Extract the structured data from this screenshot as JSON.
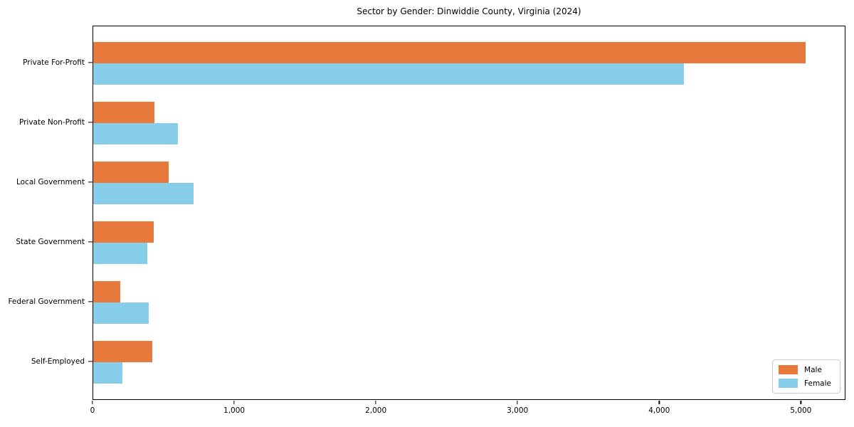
{
  "title": "Sector by Gender: Dinwiddie County, Virginia (2024)",
  "chart_data": {
    "type": "bar",
    "orientation": "horizontal",
    "title": "Sector by Gender: Dinwiddie County, Virginia (2024)",
    "categories": [
      "Private For-Profit",
      "Private Non-Profit",
      "Local Government",
      "State Government",
      "Federal Government",
      "Self-Employed"
    ],
    "series": [
      {
        "name": "Male",
        "color": "#E8793D",
        "values": [
          5030,
          430,
          535,
          425,
          190,
          415
        ]
      },
      {
        "name": "Female",
        "color": "#87CEEB",
        "values": [
          4170,
          600,
          710,
          380,
          390,
          205
        ]
      }
    ],
    "xlabel": "",
    "ylabel": "",
    "xlim": [
      0,
      5300
    ],
    "xticks": [
      0,
      1000,
      2000,
      3000,
      4000,
      5000
    ],
    "xtick_labels": [
      "0",
      "1,000",
      "2,000",
      "3,000",
      "4,000",
      "5,000"
    ],
    "grid": false,
    "legend": {
      "position": "lower right",
      "entries": [
        "Male",
        "Female"
      ]
    }
  }
}
